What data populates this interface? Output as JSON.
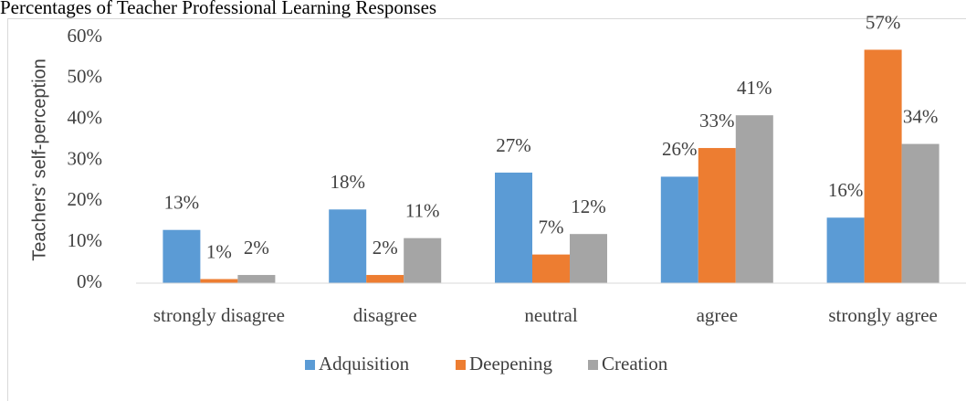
{
  "chart_data": {
    "type": "bar",
    "title": "Percentages of Teacher Professional Learning Responses",
    "y_label": "Teachers’ self-perception",
    "categories": [
      "strongly disagree",
      "disagree",
      "neutral",
      "agree",
      "strongly agree"
    ],
    "series": [
      {
        "name": "Adquisition",
        "color": "#5b9bd5",
        "values": [
          13,
          18,
          27,
          26,
          16
        ],
        "value_labels": [
          "13%",
          "18%",
          "27%",
          "26%",
          "16%"
        ]
      },
      {
        "name": "Deepening",
        "color": "#ed7d31",
        "values": [
          1,
          2,
          7,
          33,
          57
        ],
        "value_labels": [
          "1%",
          "2%",
          "7%",
          "33%",
          "57%"
        ]
      },
      {
        "name": "Creation",
        "color": "#a5a5a5",
        "values": [
          2,
          11,
          12,
          41,
          34
        ],
        "value_labels": [
          "2%",
          "11%",
          "12%",
          "41%",
          "34%"
        ]
      }
    ],
    "ylim": [
      0,
      60
    ],
    "yticks": [
      {
        "value": 0,
        "label": "0%"
      },
      {
        "value": 10,
        "label": "10%"
      },
      {
        "value": 20,
        "label": "20%"
      },
      {
        "value": 30,
        "label": "30%"
      },
      {
        "value": 40,
        "label": "40%"
      },
      {
        "value": 50,
        "label": "50%"
      },
      {
        "value": 60,
        "label": "60%"
      }
    ],
    "grid": false,
    "legend": "bottom"
  }
}
